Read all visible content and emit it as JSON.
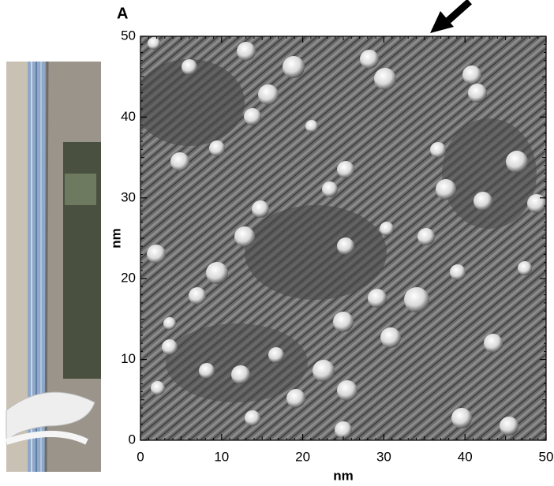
{
  "chart_data": {
    "type": "image",
    "panel_label": "A",
    "xlabel": "nm",
    "ylabel": "nm",
    "xlim": [
      0,
      50
    ],
    "ylim": [
      0,
      50
    ],
    "xticks": [
      0,
      10,
      20,
      30,
      40,
      50
    ],
    "yticks": [
      0,
      10,
      20,
      30,
      40,
      50
    ]
  }
}
